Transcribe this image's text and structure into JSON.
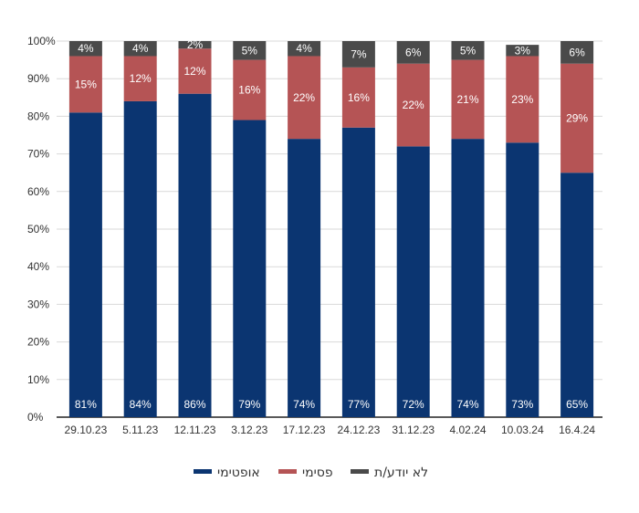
{
  "chart_data": {
    "type": "bar",
    "stacked": true,
    "categories": [
      "29.10.23",
      "5.11.23",
      "12.11.23",
      "3.12.23",
      "17.12.23",
      "24.12.23",
      "31.12.23",
      "4.02.24",
      "10.03.24",
      "16.4.24"
    ],
    "series": [
      {
        "name": "אופטימי",
        "color": "#0b3571",
        "values": [
          81,
          84,
          86,
          79,
          74,
          77,
          72,
          74,
          73,
          65
        ]
      },
      {
        "name": "פסימי",
        "color": "#b55455",
        "values": [
          15,
          12,
          12,
          16,
          22,
          16,
          22,
          21,
          23,
          29
        ]
      },
      {
        "name": "לא יודע/ת",
        "color": "#4a4a4a",
        "values": [
          4,
          4,
          2,
          5,
          4,
          7,
          6,
          5,
          3,
          6
        ]
      }
    ],
    "value_suffix": "%",
    "ylim": [
      0,
      100
    ],
    "yticks": [
      "0%",
      "10%",
      "20%",
      "30%",
      "40%",
      "50%",
      "60%",
      "70%",
      "80%",
      "90%",
      "100%"
    ],
    "grid": true,
    "legend_position": "bottom-center",
    "title": "",
    "xlabel": "",
    "ylabel": ""
  }
}
